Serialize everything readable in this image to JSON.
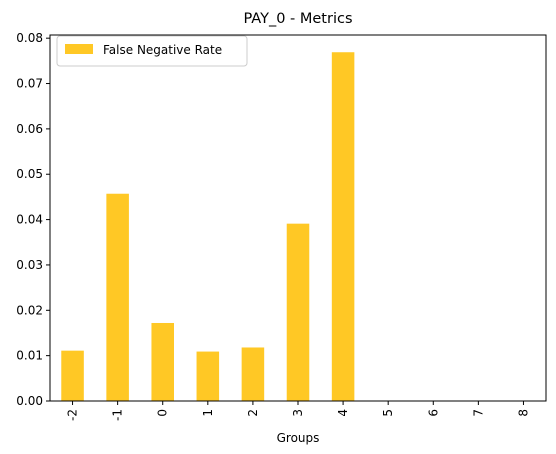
{
  "chart_data": {
    "type": "bar",
    "title": "PAY_0 - Metrics",
    "xlabel": "Groups",
    "ylabel": "",
    "categories": [
      "-2",
      "-1",
      "0",
      "1",
      "2",
      "3",
      "4",
      "5",
      "6",
      "7",
      "8"
    ],
    "series": [
      {
        "name": "False Negative Rate",
        "color": "#ffc825",
        "values": [
          0.0111,
          0.0457,
          0.0172,
          0.0109,
          0.0118,
          0.0391,
          0.0769,
          0,
          0,
          0,
          0
        ]
      }
    ],
    "ylim": [
      0,
      0.0807
    ],
    "yticks": [
      "0.00",
      "0.01",
      "0.02",
      "0.03",
      "0.04",
      "0.05",
      "0.06",
      "0.07",
      "0.08"
    ],
    "ytick_values": [
      0,
      0.01,
      0.02,
      0.03,
      0.04,
      0.05,
      0.06,
      0.07,
      0.08
    ],
    "grid": false,
    "legend_position": "top-left",
    "x_tick_rotation": "vertical"
  }
}
